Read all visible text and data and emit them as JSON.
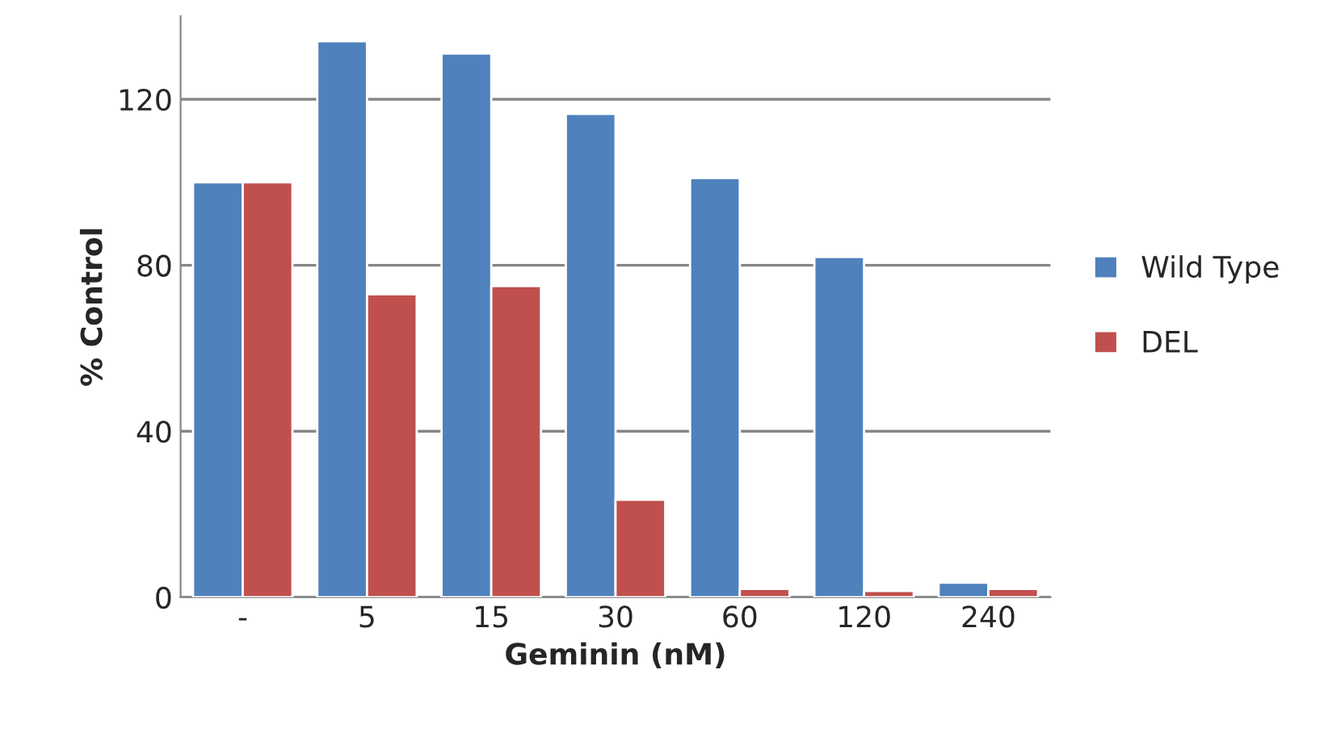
{
  "chart_data": {
    "type": "bar",
    "xlabel": "Geminin (nM)",
    "ylabel": "% Control",
    "categories": [
      "-",
      "5",
      "15",
      "30",
      "60",
      "120",
      "240"
    ],
    "series": [
      {
        "name": "Wild Type",
        "color": "#4f81bd",
        "values": [
          100,
          134,
          131,
          116.5,
          101,
          82,
          3.5
        ]
      },
      {
        "name": "DEL",
        "color": "#c0504d",
        "values": [
          100,
          73,
          75,
          23.5,
          2,
          1.5,
          2
        ]
      }
    ],
    "ylim": [
      0,
      140
    ],
    "yticks": [
      0,
      40,
      80,
      120
    ],
    "grid": "y",
    "legend": "right"
  }
}
